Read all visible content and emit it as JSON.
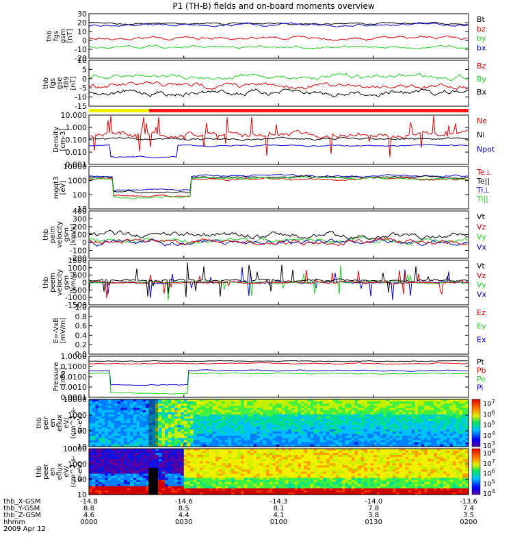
{
  "title": "P1 (TH-B) fields and on-board moments overview",
  "colors": {
    "black": "#000000",
    "red": "#e00000",
    "green": "#20d020",
    "blue": "#0000d0",
    "yellow": "#f0f000",
    "orbit_red": "#ff1a1a"
  },
  "chart_data": [
    {
      "type": "line",
      "panel": "fgs_gsm",
      "ylabel": [
        "thb",
        "fgs",
        "gsm",
        "[nT]"
      ],
      "ylim": [
        -20,
        30
      ],
      "ticks": [
        "30",
        "20",
        "10",
        "0",
        "-10",
        "-20"
      ],
      "series": [
        {
          "name": "Bt",
          "color": "black",
          "level": "~20-25 nT"
        },
        {
          "name": "bz",
          "color": "red",
          "level": "~5 nT"
        },
        {
          "name": "by",
          "color": "green",
          "level": "~-8 nT"
        },
        {
          "name": "bx",
          "color": "blue",
          "level": "~20 nT"
        }
      ]
    },
    {
      "type": "line",
      "panel": "fgs_gse_delta",
      "ylabel": [
        "thb",
        "fgs",
        "gse",
        "-t89",
        "[nT]"
      ],
      "ylim": [
        -15,
        10
      ],
      "ticks": [
        "10",
        "5",
        "0",
        "-5",
        "-10",
        "-15"
      ],
      "series": [
        {
          "name": "Bz",
          "color": "red"
        },
        {
          "name": "By",
          "color": "green"
        },
        {
          "name": "Bx",
          "color": "black"
        }
      ]
    },
    {
      "type": "line",
      "panel": "density",
      "ylabel": [
        "Density",
        "[cm-3]"
      ],
      "scale": "log",
      "ticks": [
        "10.000",
        "1.000",
        "0.100",
        "0.010",
        "0.001"
      ],
      "series": [
        {
          "name": "Ne",
          "color": "red"
        },
        {
          "name": "Ni",
          "color": "black"
        },
        {
          "name": "Npot",
          "color": "blue"
        }
      ]
    },
    {
      "type": "line",
      "panel": "temperature",
      "ylabel": [
        "mgqt3",
        "[eV]"
      ],
      "scale": "log",
      "ticks": [
        "10000",
        "1000",
        "100",
        "10"
      ],
      "series": [
        {
          "name": "Te⊥",
          "color": "red"
        },
        {
          "name": "Te||",
          "color": "black"
        },
        {
          "name": "Ti⊥",
          "color": "blue"
        },
        {
          "name": "Ti||",
          "color": "green"
        }
      ]
    },
    {
      "type": "line",
      "panel": "peim_velocity",
      "ylabel": [
        "thb",
        "peim",
        "velocity",
        "gsm",
        "[km/s]"
      ],
      "ticks": [
        "400",
        "300",
        "200",
        "100",
        "0",
        "-100",
        "-200"
      ],
      "series": [
        {
          "name": "Vt",
          "color": "black"
        },
        {
          "name": "Vz",
          "color": "red"
        },
        {
          "name": "Vy",
          "color": "green"
        },
        {
          "name": "Vx",
          "color": "blue"
        }
      ]
    },
    {
      "type": "line",
      "panel": "peem_velocity",
      "ylabel": [
        "thb",
        "peem",
        "velocity",
        "gsm",
        "[km/s]"
      ],
      "ticks": [
        "1500",
        "1000",
        "500",
        "0",
        "-500",
        "-1000",
        "-1500"
      ],
      "series": [
        {
          "name": "Vt",
          "color": "black"
        },
        {
          "name": "Vz",
          "color": "red"
        },
        {
          "name": "Vy",
          "color": "green"
        },
        {
          "name": "Vx",
          "color": "blue"
        }
      ]
    },
    {
      "type": "line",
      "panel": "efield",
      "ylabel": [
        "E=-VxB",
        "[mV/m]"
      ],
      "ticks": [
        "1.0",
        "0.8",
        "0.6",
        "0.4",
        "0.2",
        "0.0"
      ],
      "series": [
        {
          "name": "Ez",
          "color": "red"
        },
        {
          "name": "Ey",
          "color": "green"
        },
        {
          "name": "Ex",
          "color": "blue"
        }
      ]
    },
    {
      "type": "line",
      "panel": "pressure",
      "ylabel": [
        "Pressure",
        "[nPa]"
      ],
      "scale": "log",
      "ticks": [
        "1.0000",
        "0.1000",
        "0.0100",
        "0.0010",
        "0.0001"
      ],
      "series": [
        {
          "name": "Pt",
          "color": "black"
        },
        {
          "name": "Pb",
          "color": "red"
        },
        {
          "name": "Pe",
          "color": "green"
        },
        {
          "name": "Pi",
          "color": "blue"
        }
      ]
    },
    {
      "type": "heatmap",
      "panel": "peir_spectrogram",
      "ylabel": [
        "thb",
        "peir",
        "en",
        "eflux",
        "eV/",
        "(cm^2-s-",
        "sr-eV)"
      ],
      "ticks": [
        "10000",
        "1000",
        "100",
        "10"
      ],
      "colorbar": [
        "10^7",
        "10^6",
        "10^5",
        "10^4",
        "10^3"
      ]
    },
    {
      "type": "heatmap",
      "panel": "peer_spectrogram",
      "ylabel": [
        "thb",
        "peer",
        "en",
        "eflux",
        "eV/",
        "(cm^2-s-",
        "sr-eV)"
      ],
      "ticks": [
        "10000",
        "1000",
        "100",
        "10"
      ],
      "colorbar": [
        "10^8",
        "10^7",
        "10^6",
        "10^5",
        "10^4"
      ]
    }
  ],
  "xaxis": {
    "row_labels": [
      "thb_X-GSM",
      "thb_Y-GSM",
      "thb_Z-GSM",
      "hhmm",
      "2009 Apr 12"
    ],
    "columns": [
      {
        "x": "-14.8",
        "y": "8.8",
        "z": "4.6",
        "t": "0000"
      },
      {
        "x": "-14.6",
        "y": "8.5",
        "z": "4.4",
        "t": "0030"
      },
      {
        "x": "-14.3",
        "y": "8.1",
        "z": "4.1",
        "t": "0100"
      },
      {
        "x": "-14.0",
        "y": "7.8",
        "z": "3.8",
        "t": "0130"
      },
      {
        "x": "-13.6",
        "y": "7.4",
        "z": "3.5",
        "t": "0200"
      }
    ]
  },
  "legends": {
    "p1": [
      "Bt",
      "bz",
      "by",
      "bx"
    ],
    "p2": [
      "Bz",
      "By",
      "Bx"
    ],
    "p3": [
      "Ne",
      "Ni",
      "Npot"
    ],
    "p4": [
      "Te⊥",
      "Te||",
      "Ti⊥",
      "Ti||"
    ],
    "p5": [
      "Vt",
      "Vz",
      "Vy",
      "Vx"
    ],
    "p6": [
      "Vt",
      "Vz",
      "Vy",
      "Vx"
    ],
    "p7": [
      "Ez",
      "Ey",
      "Ex"
    ],
    "p8": [
      "Pt",
      "Pb",
      "Pe",
      "Pi"
    ]
  }
}
